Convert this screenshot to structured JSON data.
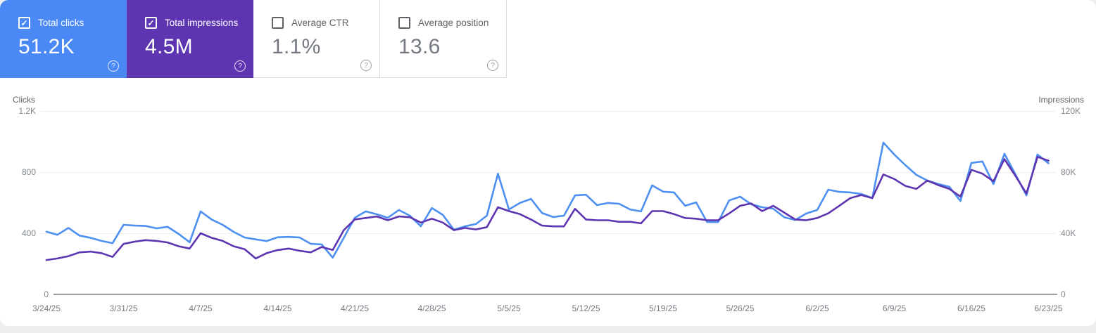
{
  "theme": {
    "clicks_color": "#4a89f5",
    "clicks_line_color": "#4d90f2",
    "impressions_color": "#5e35b1",
    "impressions_line_color": "#5e35b1",
    "card_divider_color": "#dadce0",
    "muted_text_color": "#5f6368",
    "tick_text_color": "#80868b"
  },
  "icons": {
    "help": "?",
    "checkbox_check": "✓"
  },
  "cards": [
    {
      "label": "Total clicks",
      "value": "51.2K",
      "checked": true,
      "selected_color": "#4a89f5"
    },
    {
      "label": "Total impressions",
      "value": "4.5M",
      "checked": true,
      "selected_color": "#5e35b1"
    },
    {
      "label": "Average CTR",
      "value": "1.1%",
      "checked": false
    },
    {
      "label": "Average position",
      "value": "13.6",
      "checked": false
    }
  ],
  "chart_data": {
    "type": "line",
    "frequency": "daily",
    "x_start": "3/24/25",
    "x_end": "6/23/25",
    "x_tick_labels": [
      "3/24/25",
      "3/31/25",
      "4/7/25",
      "4/14/25",
      "4/21/25",
      "4/28/25",
      "5/5/25",
      "5/12/25",
      "5/19/25",
      "5/26/25",
      "6/2/25",
      "6/9/25",
      "6/16/25",
      "6/23/25"
    ],
    "left_axis": {
      "title": "Clicks",
      "max": 1200,
      "tick_labels": [
        "1.2K",
        "800",
        "400",
        "0"
      ]
    },
    "right_axis": {
      "title": "Impressions",
      "max": 120,
      "unit": "K",
      "tick_labels": [
        "120K",
        "80K",
        "40K",
        "0"
      ]
    },
    "grid": true,
    "legend": "cards-act-as-legend",
    "series": [
      {
        "name": "Total clicks",
        "axis": "left",
        "color": "#4d90f2",
        "values": [
          410,
          390,
          435,
          385,
          370,
          350,
          335,
          455,
          450,
          448,
          432,
          442,
          396,
          341,
          543,
          490,
          455,
          409,
          372,
          360,
          349,
          374,
          376,
          372,
          331,
          326,
          240,
          370,
          501,
          543,
          524,
          501,
          552,
          515,
          446,
          565,
          520,
          423,
          445,
          460,
          515,
          790,
          556,
          598,
          625,
          533,
          506,
          515,
          648,
          652,
          584,
          598,
          593,
          556,
          543,
          713,
          672,
          667,
          580,
          602,
          473,
          473,
          615,
          639,
          590,
          570,
          561,
          505,
          487,
          529,
          552,
          685,
          671,
          667,
          657,
          630,
          993,
          915,
          846,
          782,
          745,
          722,
          704,
          611,
          860,
          870,
          722,
          920,
          785,
          648,
          915,
          858
        ]
      },
      {
        "name": "Total impressions",
        "axis": "right",
        "unit": "K",
        "color": "#5e35b1",
        "values": [
          22.5,
          23.5,
          25,
          27.5,
          28,
          27,
          24.5,
          33,
          34.5,
          35.5,
          35,
          34,
          31.5,
          30,
          40,
          37,
          35,
          31.5,
          29.5,
          23.5,
          27,
          29,
          30,
          28.5,
          27.5,
          31,
          29,
          42,
          49,
          50,
          51,
          48.5,
          51,
          50.5,
          47,
          49.5,
          47,
          42,
          43.5,
          42.5,
          44,
          57,
          54.5,
          52.5,
          49,
          45,
          44.5,
          44.5,
          56,
          49,
          48.5,
          48.5,
          47.5,
          47.5,
          46.5,
          54.5,
          54.5,
          52.5,
          50,
          49.5,
          48.5,
          48.5,
          53,
          58,
          59.5,
          54.5,
          58,
          53.5,
          49,
          48.5,
          50,
          53,
          58,
          63,
          65,
          63,
          78.5,
          75.5,
          71,
          69,
          74.5,
          71.5,
          69,
          64,
          81.5,
          79,
          74,
          88.5,
          77.5,
          66,
          90,
          87.5
        ]
      }
    ]
  }
}
